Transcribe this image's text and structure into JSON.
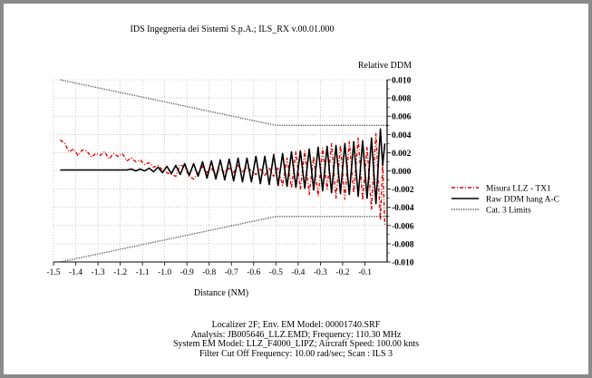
{
  "chart_data": {
    "type": "line",
    "title": "IDS Ingegneria dei Sistemi S.p.A.; ILS_RX v.00.01.000",
    "xlabel": "Distance (NM)",
    "ylabel": "Relative DDM",
    "xlim": [
      -1.5,
      0.0
    ],
    "ylim": [
      -0.01,
      0.01
    ],
    "x_ticks": [
      "-1.5",
      "-1.4",
      "-1.3",
      "-1.2",
      "-1.1",
      "-1.0",
      "-0.9",
      "-0.8",
      "-0.7",
      "-0.6",
      "-0.5",
      "-0.4",
      "-0.3",
      "-0.2",
      "-0.1"
    ],
    "y_ticks": [
      "0.010",
      "0.008",
      "0.006",
      "0.004",
      "0.002",
      "0.000",
      "-0.002",
      "-0.004",
      "-0.006",
      "-0.008",
      "-0.010"
    ],
    "grid": true,
    "legend_position": "right",
    "series": [
      {
        "name": "Misura LLZ - TX1",
        "color": "#e00000",
        "style": "dash-dot",
        "x": [
          -1.47,
          -1.45,
          -1.43,
          -1.41,
          -1.39,
          -1.37,
          -1.35,
          -1.33,
          -1.31,
          -1.29,
          -1.27,
          -1.25,
          -1.23,
          -1.21,
          -1.19,
          -1.17,
          -1.15,
          -1.13,
          -1.11,
          -1.09,
          -1.07,
          -1.05,
          -1.03,
          -1.01,
          -0.99,
          -0.97,
          -0.95,
          -0.93,
          -0.91,
          -0.89,
          -0.87,
          -0.85,
          -0.83,
          -0.81,
          -0.79,
          -0.77,
          -0.75,
          -0.73,
          -0.71,
          -0.69,
          -0.67,
          -0.65,
          -0.63,
          -0.61,
          -0.59,
          -0.57,
          -0.55,
          -0.53,
          -0.51,
          -0.49,
          -0.47,
          -0.45,
          -0.43,
          -0.41,
          -0.39,
          -0.37,
          -0.35,
          -0.33,
          -0.31,
          -0.29,
          -0.27,
          -0.25,
          -0.23,
          -0.21,
          -0.19,
          -0.17,
          -0.15,
          -0.13,
          -0.11,
          -0.09,
          -0.07,
          -0.05,
          -0.03,
          -0.02,
          -0.01
        ],
        "y": [
          0.0034,
          0.003,
          0.0021,
          0.0024,
          0.0017,
          0.0023,
          0.0022,
          0.0015,
          0.0019,
          0.0017,
          0.0021,
          0.0013,
          0.0019,
          0.0016,
          0.0019,
          0.0011,
          0.0014,
          0.001,
          0.0012,
          0.0007,
          0.0009,
          0.0004,
          0.0006,
          0.0001,
          -0.0002,
          -0.0004,
          -0.0006,
          0.0007,
          0.0004,
          -0.0006,
          -0.0009,
          -0.0003,
          0.0005,
          -0.0002,
          0.0003,
          -0.0004,
          0.0002,
          -0.0002,
          0.0003,
          -0.0002,
          0.0006,
          -0.0001,
          0.0004,
          0.0,
          -0.0004,
          0.0002,
          -0.0005,
          0.0003,
          -0.0006,
          0.0004,
          -0.0016,
          0.0014,
          -0.0019,
          0.0021,
          -0.002,
          0.0022,
          -0.0026,
          0.0016,
          -0.0028,
          0.0025,
          -0.002,
          0.003,
          -0.003,
          0.0028,
          -0.0031,
          0.0032,
          -0.0024,
          0.0036,
          -0.0032,
          0.0026,
          -0.0042,
          0.0041,
          -0.0054,
          0.001,
          -0.006
        ]
      },
      {
        "name": "Raw DDM hang A-C",
        "color": "#000000",
        "style": "solid",
        "x": [
          -1.47,
          -1.45,
          -1.43,
          -1.41,
          -1.39,
          -1.37,
          -1.35,
          -1.33,
          -1.31,
          -1.29,
          -1.27,
          -1.25,
          -1.23,
          -1.21,
          -1.19,
          -1.17,
          -1.15,
          -1.13,
          -1.11,
          -1.09,
          -1.07,
          -1.05,
          -1.03,
          -1.01,
          -0.99,
          -0.97,
          -0.95,
          -0.93,
          -0.91,
          -0.89,
          -0.87,
          -0.85,
          -0.83,
          -0.81,
          -0.79,
          -0.77,
          -0.75,
          -0.73,
          -0.71,
          -0.69,
          -0.67,
          -0.65,
          -0.63,
          -0.61,
          -0.59,
          -0.57,
          -0.55,
          -0.53,
          -0.51,
          -0.49,
          -0.47,
          -0.45,
          -0.43,
          -0.41,
          -0.39,
          -0.37,
          -0.35,
          -0.33,
          -0.31,
          -0.29,
          -0.27,
          -0.25,
          -0.23,
          -0.21,
          -0.19,
          -0.17,
          -0.15,
          -0.13,
          -0.11,
          -0.09,
          -0.07,
          -0.05,
          -0.03,
          -0.02,
          -0.01
        ],
        "y": [
          0.0001,
          0.0001,
          0.0001,
          0.0001,
          0.0001,
          0.0001,
          0.0001,
          0.0001,
          0.0001,
          0.0001,
          0.0001,
          0.0001,
          0.0001,
          0.0001,
          0.0001,
          0.0001,
          0.0002,
          0.0,
          0.0002,
          0.0,
          0.0003,
          -0.0001,
          0.0004,
          -0.0002,
          0.0005,
          -0.0003,
          0.0006,
          -0.0004,
          0.0008,
          -0.0005,
          0.0008,
          -0.0006,
          0.001,
          -0.0008,
          0.0011,
          -0.0009,
          0.0012,
          -0.001,
          0.0013,
          -0.0011,
          0.0014,
          -0.0012,
          0.0014,
          -0.0012,
          0.0016,
          -0.0014,
          0.0016,
          -0.0015,
          0.0018,
          -0.0016,
          0.0019,
          -0.0017,
          0.0021,
          -0.0018,
          0.0022,
          -0.0019,
          0.0024,
          -0.0021,
          0.0026,
          -0.0022,
          0.0027,
          -0.0024,
          0.0028,
          -0.0025,
          0.003,
          -0.0026,
          0.0032,
          -0.0028,
          0.0033,
          -0.003,
          0.0036,
          -0.0036,
          0.0046,
          0.0006,
          0.003
        ]
      },
      {
        "name": "Cat. 3 Limits",
        "color": "#555555",
        "style": "dotted",
        "x": [
          -1.47,
          -0.5,
          0.0
        ],
        "y_upper": [
          0.01,
          0.005,
          0.005
        ],
        "y_lower": [
          -0.01,
          -0.005,
          -0.005
        ]
      }
    ],
    "footer": [
      "Localizer 2F; Env. EM Model: 00001740.SRF",
      "Analysis: JB005646_LLZ.EMD; Frequency: 110.30 MHz",
      "System EM Model: LLZ_F4000_LIPZ; Aircraft Speed: 100.00 knts",
      "Filter Cut Off Frequency: 10.00 rad/sec; Scan : ILS 3"
    ]
  }
}
